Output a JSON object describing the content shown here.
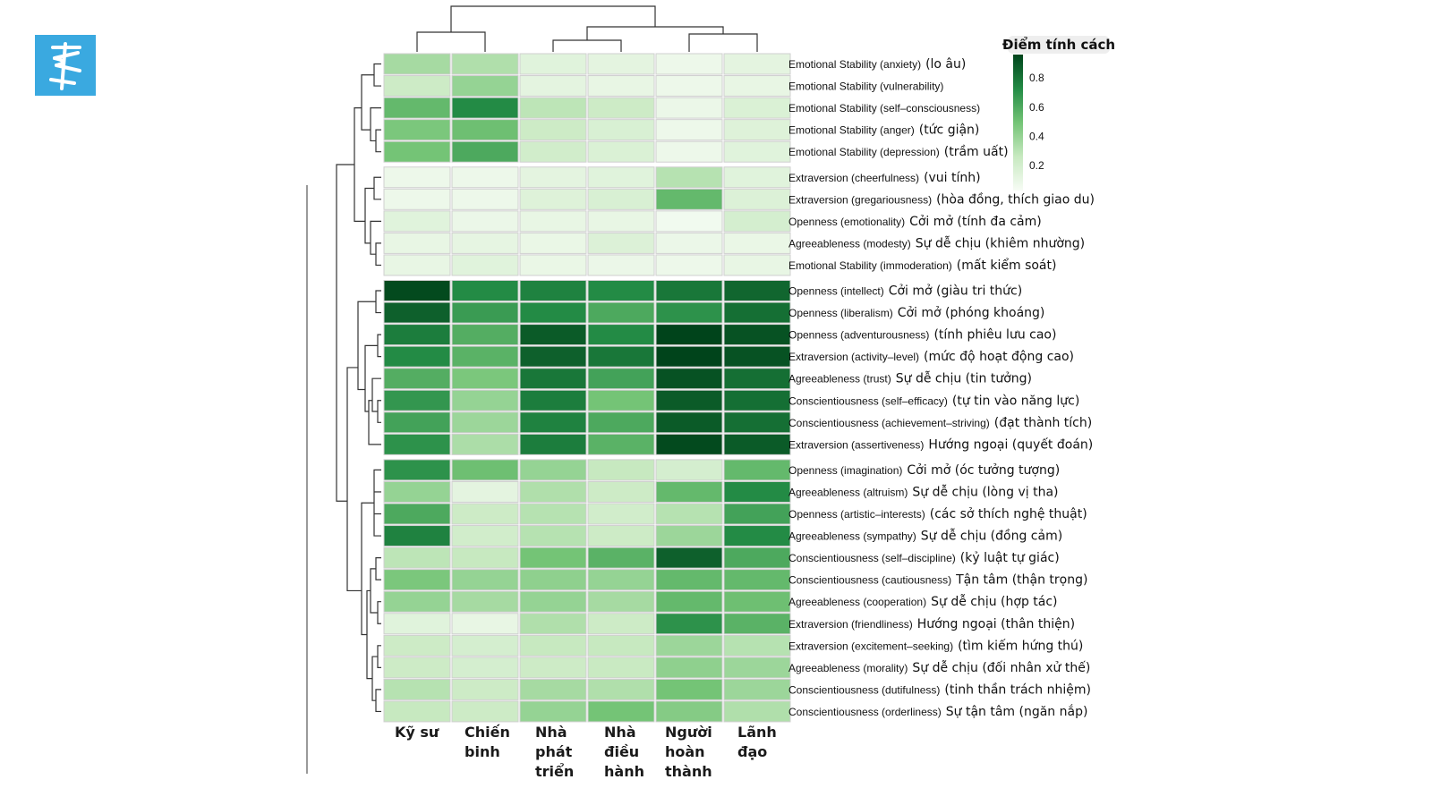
{
  "logo": {
    "icon": "brand-logo-icon",
    "color": "#3aa9e0"
  },
  "chart_data": {
    "type": "heatmap",
    "columns": [
      "Kỹ sư",
      "Chiến binh",
      "Nhà phát triển",
      "Nhà điều hành",
      "Người hoàn thành",
      "Lãnh đạo"
    ],
    "column_label_lines": [
      [
        "Kỹ sư"
      ],
      [
        "Chiến",
        "binh"
      ],
      [
        "Nhà",
        "phát",
        "triển"
      ],
      [
        "Nhà",
        "điều",
        "hành"
      ],
      [
        "Người",
        "hoàn",
        "thành"
      ],
      [
        "Lãnh",
        "đạo"
      ]
    ],
    "row_groups": [
      5,
      5,
      8,
      12
    ],
    "rows": [
      {
        "en": "Emotional Stability (anxiety)",
        "vi": "(lo âu)",
        "values": [
          0.35,
          0.32,
          0.12,
          0.1,
          0.05,
          0.1
        ]
      },
      {
        "en": "Emotional Stability (vulnerability)",
        "vi": "",
        "values": [
          0.22,
          0.4,
          0.1,
          0.08,
          0.05,
          0.08
        ]
      },
      {
        "en": "Emotional Stability (self–consciousness)",
        "vi": "",
        "values": [
          0.55,
          0.75,
          0.28,
          0.22,
          0.06,
          0.15
        ]
      },
      {
        "en": "Emotional Stability (anger)",
        "vi": "(tức giận)",
        "values": [
          0.48,
          0.52,
          0.22,
          0.16,
          0.05,
          0.13
        ]
      },
      {
        "en": "Emotional Stability (depression)",
        "vi": "(trầm uất)",
        "values": [
          0.5,
          0.62,
          0.2,
          0.15,
          0.05,
          0.12
        ]
      },
      {
        "en": "Extraversion (cheerfulness)",
        "vi": "(vui tính)",
        "values": [
          0.05,
          0.05,
          0.1,
          0.12,
          0.3,
          0.12
        ]
      },
      {
        "en": "Extraversion (gregariousness)",
        "vi": "(hòa đồng, thích giao du)",
        "values": [
          0.05,
          0.05,
          0.13,
          0.16,
          0.55,
          0.14
        ]
      },
      {
        "en": "Openness (emotionality)",
        "vi": "Cởi mở (tính đa cảm)",
        "values": [
          0.12,
          0.06,
          0.08,
          0.08,
          0.03,
          0.18
        ]
      },
      {
        "en": "Agreeableness (modesty)",
        "vi": "Sự dễ chịu (khiêm nhường)",
        "values": [
          0.08,
          0.09,
          0.07,
          0.14,
          0.06,
          0.07
        ]
      },
      {
        "en": "Emotional Stability (immoderation)",
        "vi": "(mất kiểm soát)",
        "values": [
          0.08,
          0.12,
          0.07,
          0.06,
          0.05,
          0.08
        ]
      },
      {
        "en": "Openness (intellect)",
        "vi": "Cởi mở (giàu tri thức)",
        "values": [
          0.98,
          0.75,
          0.78,
          0.75,
          0.82,
          0.88
        ]
      },
      {
        "en": "Openness (liberalism)",
        "vi": "Cởi mở (phóng khoáng)",
        "values": [
          0.9,
          0.68,
          0.75,
          0.62,
          0.72,
          0.85
        ]
      },
      {
        "en": "Openness (adventurousness)",
        "vi": "(tính phiêu lưu cao)",
        "values": [
          0.8,
          0.6,
          0.92,
          0.75,
          1.0,
          0.95
        ]
      },
      {
        "en": "Extraversion (activity–level)",
        "vi": "(mức độ hoạt động cao)",
        "values": [
          0.75,
          0.58,
          0.9,
          0.82,
          1.0,
          0.95
        ]
      },
      {
        "en": "Agreeableness (trust)",
        "vi": "Sự dễ chịu (tin tưởng)",
        "values": [
          0.6,
          0.48,
          0.82,
          0.65,
          0.95,
          0.85
        ]
      },
      {
        "en": "Conscientiousness (self–efficacy)",
        "vi": "(tự tin vào năng lực)",
        "values": [
          0.7,
          0.4,
          0.8,
          0.5,
          0.92,
          0.85
        ]
      },
      {
        "en": "Conscientiousness (achievement–striving)",
        "vi": "(đạt thành tích)",
        "values": [
          0.65,
          0.38,
          0.78,
          0.62,
          0.92,
          0.85
        ]
      },
      {
        "en": "Extraversion (assertiveness)",
        "vi": "Hướng ngoại (quyết đoán)",
        "values": [
          0.72,
          0.33,
          0.8,
          0.58,
          0.98,
          0.92
        ]
      },
      {
        "en": "Openness (imagination)",
        "vi": "Cởi mở (óc tưởng tượng)",
        "values": [
          0.72,
          0.52,
          0.4,
          0.25,
          0.18,
          0.55
        ]
      },
      {
        "en": "Agreeableness (altruism)",
        "vi": "Sự dễ chịu (lòng vị tha)",
        "values": [
          0.4,
          0.1,
          0.32,
          0.22,
          0.55,
          0.75
        ]
      },
      {
        "en": "Openness (artistic–interests)",
        "vi": "(các sở thích nghệ thuật)",
        "values": [
          0.62,
          0.22,
          0.3,
          0.2,
          0.3,
          0.65
        ]
      },
      {
        "en": "Agreeableness (sympathy)",
        "vi": "Sự dễ chịu (đồng cảm)",
        "values": [
          0.78,
          0.2,
          0.3,
          0.22,
          0.38,
          0.75
        ]
      },
      {
        "en": "Conscientiousness (self–discipline)",
        "vi": "(kỷ luật tự giác)",
        "values": [
          0.28,
          0.25,
          0.5,
          0.58,
          0.9,
          0.62
        ]
      },
      {
        "en": "Conscientiousness (cautiousness)",
        "vi": "Tận tâm (thận trọng)",
        "values": [
          0.48,
          0.4,
          0.42,
          0.4,
          0.55,
          0.55
        ]
      },
      {
        "en": "Agreeableness (cooperation)",
        "vi": "Sự dễ chịu (hợp tác)",
        "values": [
          0.4,
          0.35,
          0.4,
          0.35,
          0.55,
          0.52
        ]
      },
      {
        "en": "Extraversion (friendliness)",
        "vi": "Hướng ngoại (thân thiện)",
        "values": [
          0.12,
          0.08,
          0.32,
          0.22,
          0.72,
          0.58
        ]
      },
      {
        "en": "Extraversion (excitement–seeking)",
        "vi": "(tìm kiếm hứng thú)",
        "values": [
          0.22,
          0.18,
          0.25,
          0.25,
          0.38,
          0.3
        ]
      },
      {
        "en": "Agreeableness (morality)",
        "vi": "Sự dễ chịu (đối nhân xử thế)",
        "values": [
          0.22,
          0.18,
          0.22,
          0.24,
          0.42,
          0.38
        ]
      },
      {
        "en": "Conscientiousness (dutifulness)",
        "vi": "(tinh thần trách nhiệm)",
        "values": [
          0.3,
          0.22,
          0.35,
          0.32,
          0.5,
          0.38
        ]
      },
      {
        "en": "Conscientiousness (orderliness)",
        "vi": "Sự tận tâm (ngăn nắp)",
        "values": [
          0.25,
          0.22,
          0.4,
          0.5,
          0.45,
          0.32
        ]
      }
    ],
    "colorbar": {
      "title": "Điểm tính cách",
      "ticks": [
        0.8,
        0.6,
        0.4,
        0.2
      ],
      "range": [
        0.03,
        0.96
      ],
      "low_color": "#f7fcf5",
      "high_color": "#00441b"
    }
  }
}
